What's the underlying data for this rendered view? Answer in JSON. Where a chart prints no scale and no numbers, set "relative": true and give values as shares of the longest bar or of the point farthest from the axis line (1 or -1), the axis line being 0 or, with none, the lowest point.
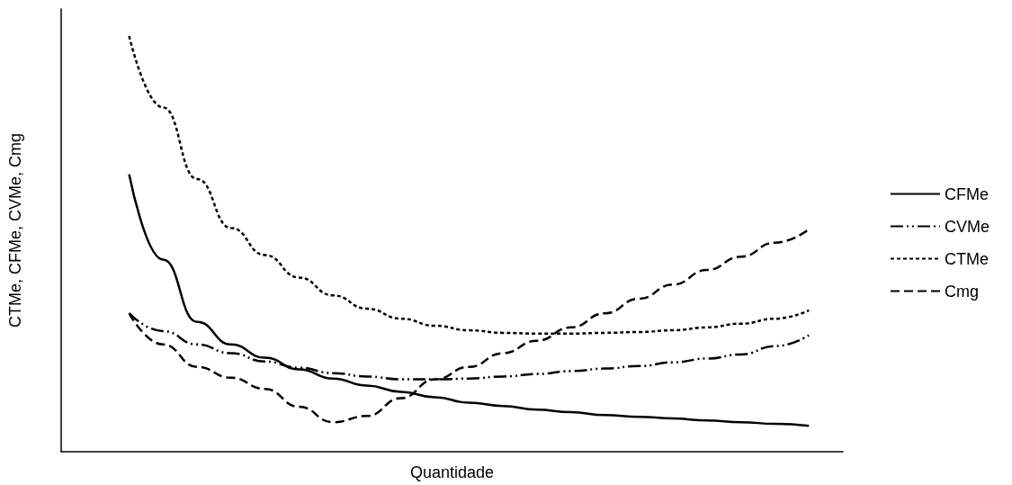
{
  "chart_data": {
    "type": "line",
    "relative": true,
    "xlabel": "Quantidade",
    "ylabel": "CTMe, CFMe, CVMe, Cmg",
    "legend": "right",
    "grid": false,
    "marker": "none",
    "categories": [
      null,
      null,
      null,
      null,
      null,
      null,
      null,
      null,
      null,
      null,
      null,
      null,
      null,
      null,
      null,
      null,
      null,
      null,
      null,
      null,
      null,
      null,
      null,
      null
    ],
    "series": [
      {
        "name": "CFMe",
        "color": "#000000",
        "line_style": "solid",
        "values": [
          null,
          null,
          0.667,
          0.462,
          0.312,
          0.258,
          0.226,
          0.198,
          0.176,
          0.159,
          0.144,
          0.131,
          0.118,
          0.11,
          0.101,
          0.095,
          0.088,
          0.084,
          0.08,
          0.075,
          0.071,
          0.067,
          0.062,
          null
        ]
      },
      {
        "name": "CVMe",
        "color": "#000000",
        "line_style": "dashdotdot",
        "values": [
          null,
          null,
          0.333,
          0.29,
          0.258,
          0.237,
          0.217,
          0.202,
          0.189,
          0.181,
          0.174,
          0.174,
          0.176,
          0.181,
          0.187,
          0.194,
          0.2,
          0.206,
          0.215,
          0.224,
          0.234,
          0.254,
          0.28,
          null
        ]
      },
      {
        "name": "CTMe",
        "color": "#000000",
        "line_style": "dotted",
        "values": [
          null,
          null,
          1.0,
          0.828,
          0.656,
          0.538,
          0.473,
          0.419,
          0.376,
          0.344,
          0.32,
          0.303,
          0.292,
          0.286,
          0.284,
          0.284,
          0.286,
          0.288,
          0.292,
          0.299,
          0.308,
          0.32,
          0.34,
          null
        ]
      },
      {
        "name": "Cmg",
        "color": "#000000",
        "line_style": "dashed",
        "values": [
          null,
          null,
          0.333,
          0.258,
          0.204,
          0.178,
          0.151,
          0.108,
          0.071,
          0.086,
          0.129,
          0.174,
          0.204,
          0.237,
          0.267,
          0.299,
          0.333,
          0.368,
          0.402,
          0.437,
          0.469,
          0.503,
          0.535,
          null
        ]
      }
    ]
  }
}
